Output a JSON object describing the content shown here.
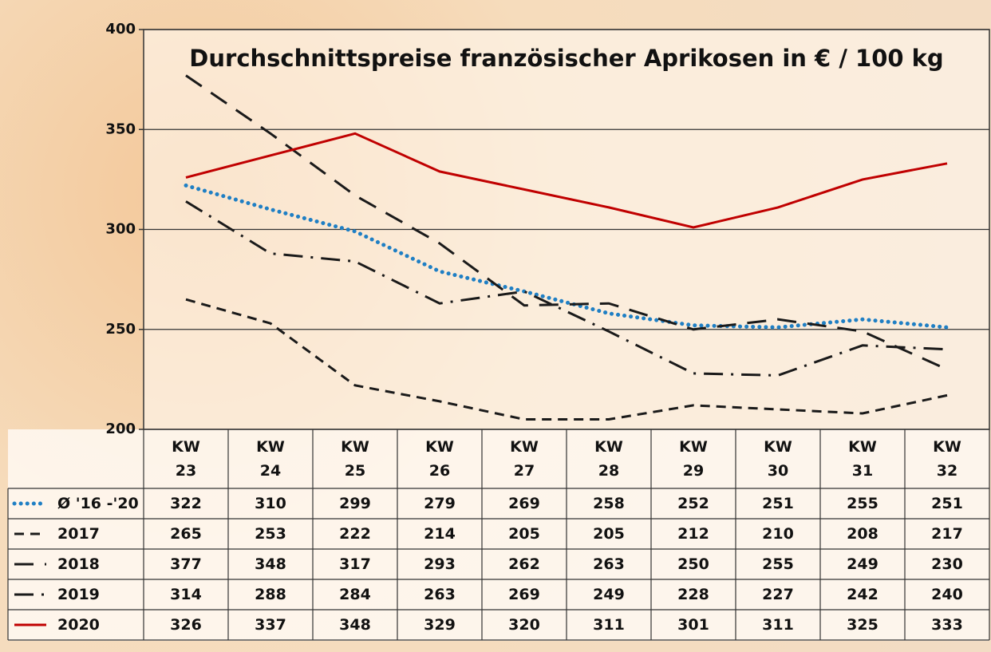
{
  "chart_data": {
    "type": "line",
    "title": "Durchschnittspreise französischer Aprikosen in € / 100 kg",
    "categories": [
      "KW 23",
      "KW 24",
      "KW 25",
      "KW 26",
      "KW 27",
      "KW 28",
      "KW 29",
      "KW 30",
      "KW 31",
      "KW 32"
    ],
    "series": [
      {
        "name": "Ø '16 -'20",
        "color": "#1f7fc4",
        "dash": "dotted",
        "values": [
          322,
          310,
          299,
          279,
          269,
          258,
          252,
          251,
          255,
          251
        ]
      },
      {
        "name": "2017",
        "color": "#1a1a1a",
        "dash": "dashed",
        "values": [
          265,
          253,
          222,
          214,
          205,
          205,
          212,
          210,
          208,
          217
        ]
      },
      {
        "name": "2018",
        "color": "#1a1a1a",
        "dash": "longdash",
        "values": [
          377,
          348,
          317,
          293,
          262,
          263,
          250,
          255,
          249,
          230
        ]
      },
      {
        "name": "2019",
        "color": "#1a1a1a",
        "dash": "dashdot",
        "values": [
          314,
          288,
          284,
          263,
          269,
          249,
          228,
          227,
          242,
          240
        ]
      },
      {
        "name": "2020",
        "color": "#c00000",
        "dash": "solid",
        "values": [
          326,
          337,
          348,
          329,
          320,
          311,
          301,
          311,
          325,
          333
        ]
      }
    ],
    "ylim": [
      200,
      400
    ],
    "yticks": [
      200,
      250,
      300,
      350,
      400
    ],
    "grid": true
  }
}
